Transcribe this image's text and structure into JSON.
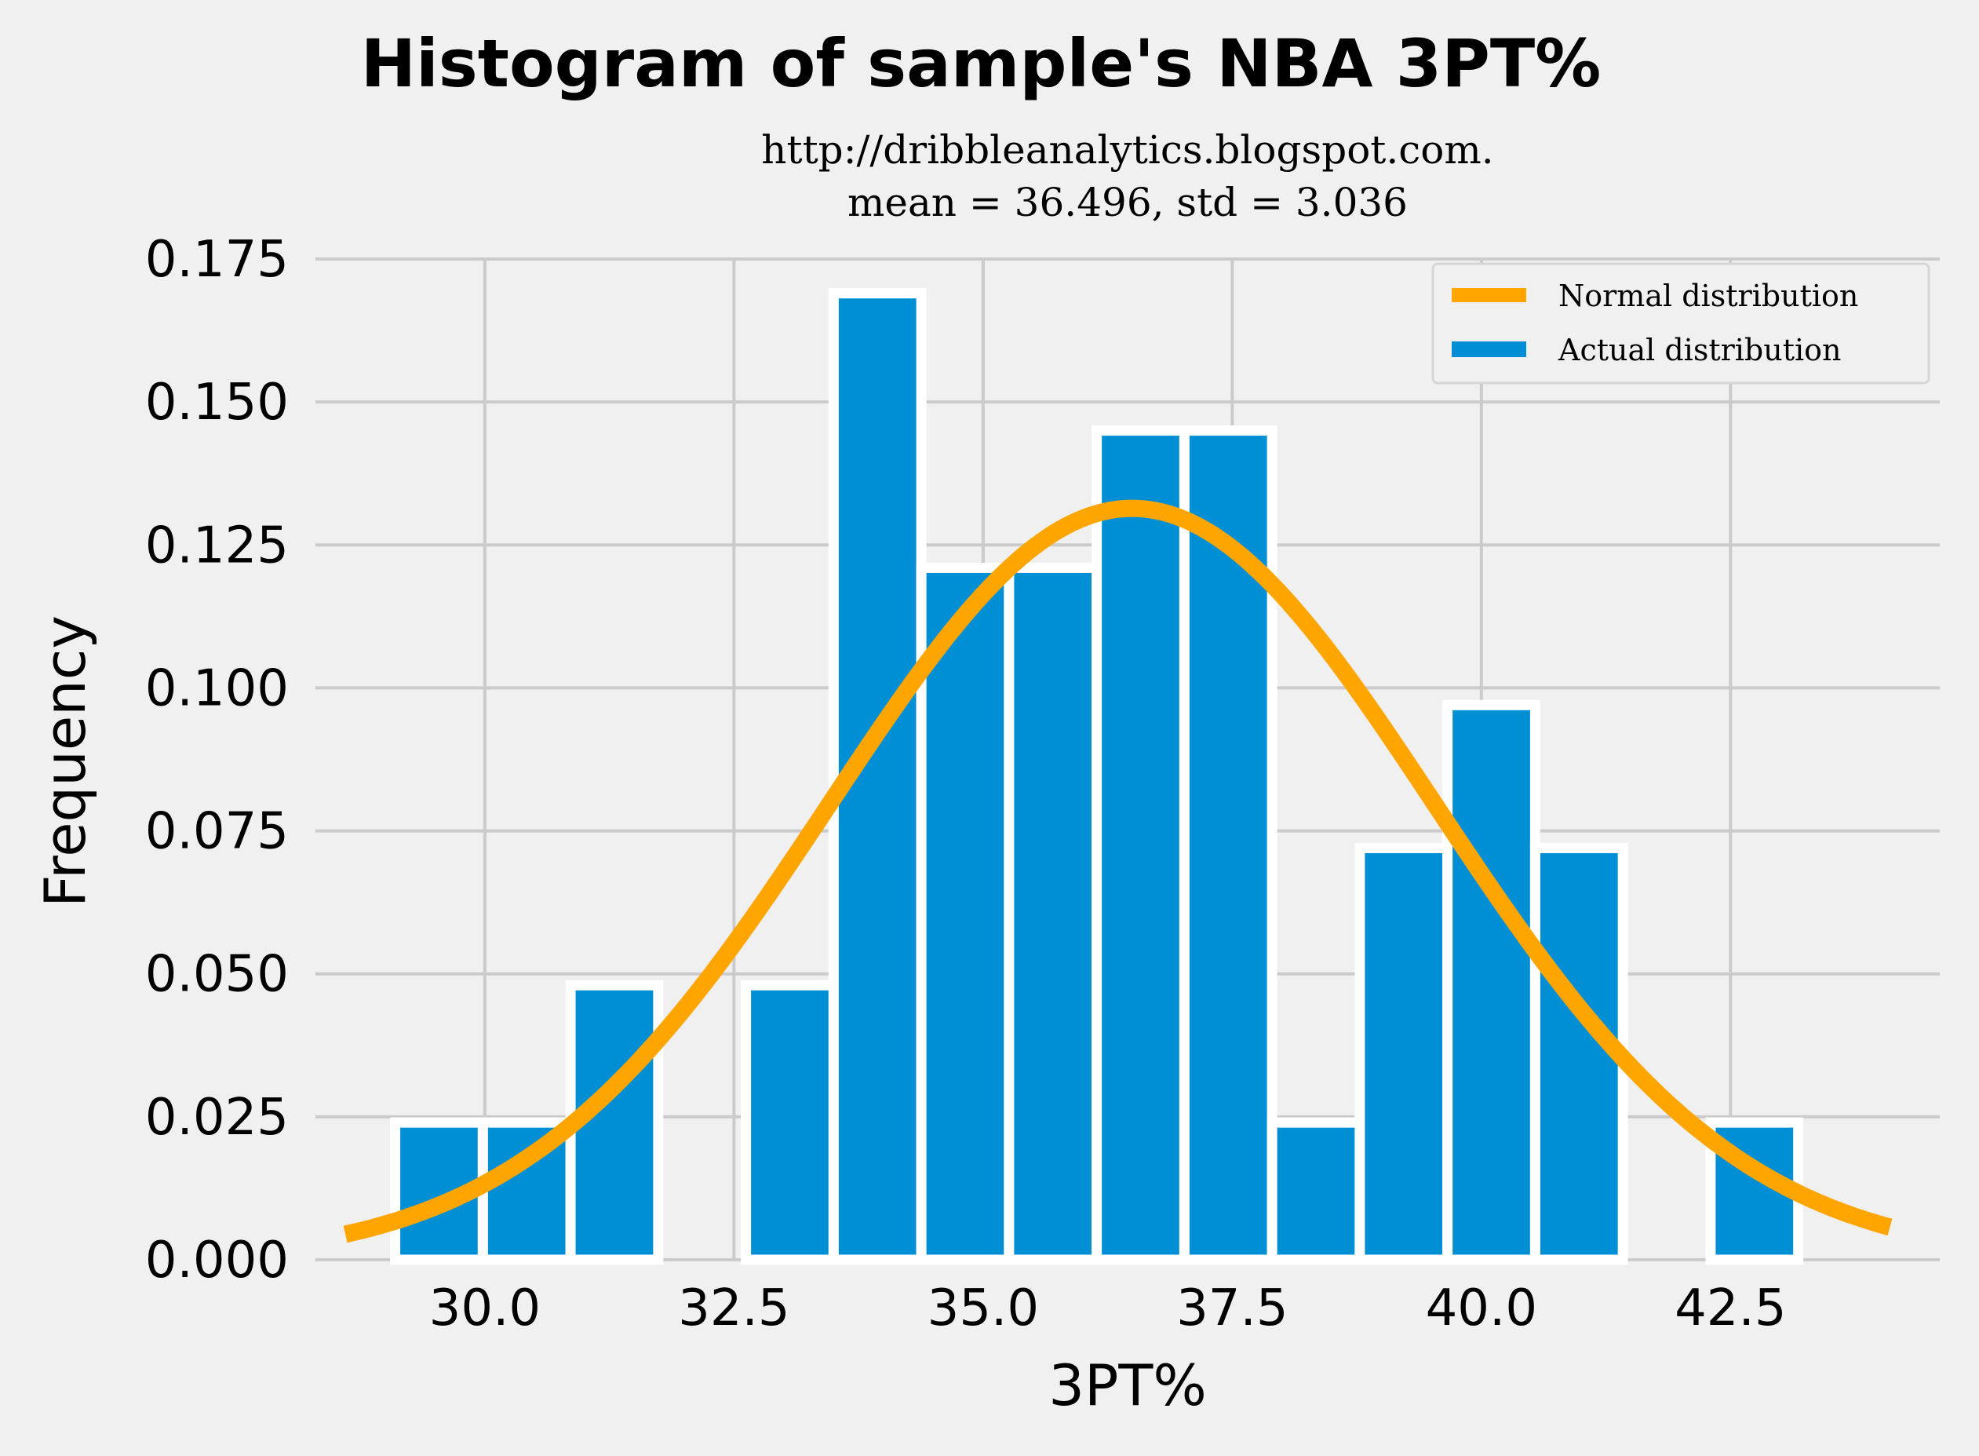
{
  "chart_data": {
    "type": "bar",
    "title": "Histogram of sample's NBA 3PT%",
    "subtitle_lines": [
      "http://dribbleanalytics.blogspot.com.",
      "mean = 36.496, std = 3.036"
    ],
    "xlabel": "3PT%",
    "ylabel": "Frequency",
    "xlim": [
      28.3,
      44.6
    ],
    "ylim": [
      0,
      0.175
    ],
    "xticks": [
      30.0,
      32.5,
      35.0,
      37.5,
      40.0,
      42.5
    ],
    "xtick_labels": [
      "30.0",
      "32.5",
      "35.0",
      "37.5",
      "40.0",
      "42.5"
    ],
    "yticks": [
      0,
      0.025,
      0.05,
      0.075,
      0.1,
      0.125,
      0.15,
      0.175
    ],
    "ytick_labels": [
      "0.000",
      "0.025",
      "0.050",
      "0.075",
      "0.100",
      "0.125",
      "0.150",
      "0.175"
    ],
    "grid": true,
    "legend_position": "top-right",
    "bin_width": 0.88,
    "bins": [
      {
        "left": 29.1,
        "value": 0.024
      },
      {
        "left": 29.98,
        "value": 0.024
      },
      {
        "left": 30.86,
        "value": 0.048
      },
      {
        "left": 31.74,
        "value": 0.0
      },
      {
        "left": 32.62,
        "value": 0.048
      },
      {
        "left": 33.5,
        "value": 0.169
      },
      {
        "left": 34.38,
        "value": 0.121
      },
      {
        "left": 35.26,
        "value": 0.121
      },
      {
        "left": 36.14,
        "value": 0.145
      },
      {
        "left": 37.02,
        "value": 0.145
      },
      {
        "left": 37.9,
        "value": 0.024
      },
      {
        "left": 38.78,
        "value": 0.072
      },
      {
        "left": 39.66,
        "value": 0.097
      },
      {
        "left": 40.54,
        "value": 0.072
      },
      {
        "left": 41.42,
        "value": 0.0
      },
      {
        "left": 42.3,
        "value": 0.024
      }
    ],
    "normal_curve": {
      "mean": 36.496,
      "std": 3.036,
      "x_range": [
        28.6,
        44.1
      ]
    },
    "series": [
      {
        "name": "Normal distribution",
        "color": "#ffa500"
      },
      {
        "name": "Actual distribution",
        "color": "#008fd5"
      }
    ],
    "colors": {
      "background": "#f0f0f0",
      "grid": "#cbcbcb",
      "bar_edge": "#ffffff"
    }
  }
}
